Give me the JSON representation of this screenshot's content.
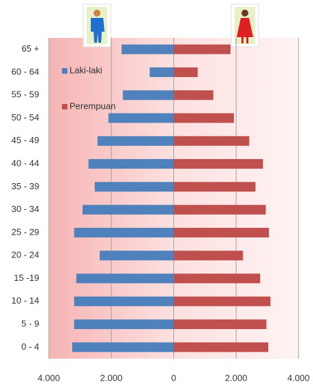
{
  "chart_data": {
    "type": "bar",
    "orientation": "horizontal",
    "stacked_divergent": true,
    "categories": [
      "65 +",
      "60 - 64",
      "55 - 59",
      "50 - 54",
      "45 - 49",
      "40 - 44",
      "35 - 39",
      "30 - 34",
      "25 - 29",
      "20 - 24",
      "15 -19",
      "10 - 14",
      "5 - 9",
      "0 - 4"
    ],
    "series": [
      {
        "name": "Laki-laki",
        "color": "#4f81bd",
        "values": [
          -1670,
          -770,
          -1630,
          -2090,
          -2440,
          -2730,
          -2530,
          -2920,
          -3190,
          -2370,
          -3120,
          -3190,
          -3190,
          -3250
        ]
      },
      {
        "name": "Perempuan",
        "color": "#c0504d",
        "values": [
          1820,
          770,
          1270,
          1930,
          2420,
          2860,
          2620,
          2950,
          3050,
          2220,
          2770,
          3100,
          2970,
          3030
        ]
      }
    ],
    "xlim": [
      -4000,
      4000
    ],
    "xticks": [
      {
        "value": -4000,
        "label": "4.000"
      },
      {
        "value": -2000,
        "label": "2.000"
      },
      0,
      {
        "value": 2000,
        "label": "2.000"
      },
      {
        "value": 4000,
        "label": "4.000"
      }
    ],
    "grid": true,
    "legend": "upper left"
  }
}
